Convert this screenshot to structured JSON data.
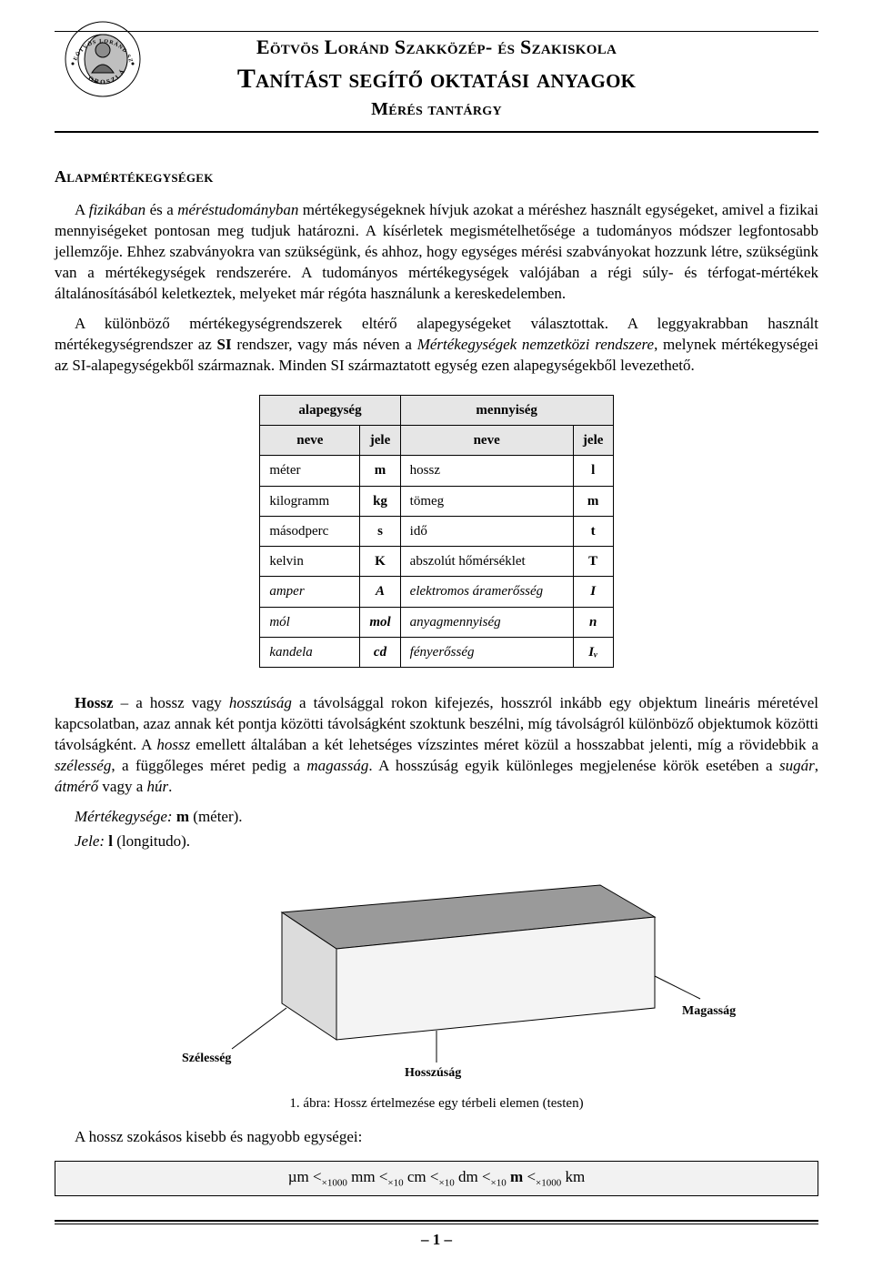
{
  "header": {
    "line1": "Eötvös Loránd Szakközép- és Szakiskola",
    "line2": "Tanítást segítő oktatási anyagok",
    "line3": "Mérés tantárgy"
  },
  "logo": {
    "text_top": "SZAKKÖZÉP",
    "text_side": "ÉS SZAKISKOLA",
    "text_left": "EÖTVÖS LORÁND",
    "text_bottom": "OROSZLÁNY",
    "stroke": "#000000",
    "fill": "#cfcfcf"
  },
  "section_title": "Alapmértékegységek",
  "para1_parts": {
    "a": "A ",
    "b": "fizikában",
    "c": " és a ",
    "d": "méréstudományban",
    "e": " mértékegységeknek hívjuk azokat a méréshez használt egységeket, amivel a fizikai mennyiségeket pontosan meg tudjuk határozni. A kísérletek megismételhetősége a tudományos módszer legfontosabb jellemzője. Ehhez szabványokra van szükségünk, és ahhoz, hogy egységes mérési szabványokat hozzunk létre, szükségünk van a mértékegységek rendszerére. A tudományos mértékegységek valójában a régi súly- és térfogat-mértékek általánosításából keletkeztek, melyeket már régóta használunk a kereskedelemben."
  },
  "para2_parts": {
    "a": "A különböző mértékegységrendszerek eltérő alapegységeket választottak. A leggyakrabban használt mértékegységrendszer az ",
    "b": "SI",
    "c": " rendszer, vagy más néven a ",
    "d": "Mértékegységek nemzetközi rendszere",
    "e": ", melynek mértékegységei az SI-alapegységekből származnak. Minden SI származtatott egység ezen alapegységekből levezethető."
  },
  "table": {
    "group1": "alapegység",
    "group2": "mennyiség",
    "col_neve": "neve",
    "col_jele": "jele",
    "rows": [
      {
        "name": "méter",
        "sym": "m",
        "qty": "hossz",
        "qsym": "l",
        "italic": false,
        "symItalic": false
      },
      {
        "name": "kilogramm",
        "sym": "kg",
        "qty": "tömeg",
        "qsym": "m",
        "italic": false,
        "symItalic": false
      },
      {
        "name": "másodperc",
        "sym": "s",
        "qty": "idő",
        "qsym": "t",
        "italic": false,
        "symItalic": false
      },
      {
        "name": "kelvin",
        "sym": "K",
        "qty": "abszolút hőmérséklet",
        "qsym": "T",
        "italic": false,
        "symItalic": false
      },
      {
        "name": "amper",
        "sym": "A",
        "qty": "elektromos áramerősség",
        "qsym": "I",
        "italic": true,
        "symItalic": true
      },
      {
        "name": "mól",
        "sym": "mol",
        "qty": "anyagmennyiség",
        "qsym": "n",
        "italic": true,
        "symItalic": true
      },
      {
        "name": "kandela",
        "sym": "cd",
        "qty": "fényerősség",
        "qsym": "Iᵥ",
        "italic": true,
        "symItalic": true
      }
    ]
  },
  "hossz_para_parts": {
    "a": "Hossz",
    "b": " – a hossz vagy ",
    "c": "hosszúság",
    "d": " a távolsággal rokon kifejezés, hosszról inkább egy objektum lineáris méretével kapcsolatban, azaz annak két pontja közötti távolságként szoktunk beszélni, míg távolságról különböző objektumok közötti távolságként. A ",
    "e": "hossz",
    "f": " emellett általában a két lehetséges vízszintes méret közül a hosszabbat jelenti, míg a rövidebbik a ",
    "g": "szélesség",
    "h": ", a függőleges méret pedig a ",
    "i": "magasság",
    "j": ". A hosszúság egyik különleges megjelenése körök esetében a ",
    "k": "sugár",
    "l": ", ",
    "m": "átmérő",
    "n": " vagy a ",
    "o": "húr",
    "p": "."
  },
  "meta": {
    "unit_label": "Mértékegysége:",
    "unit_value": "m",
    "unit_explain": " (méter).",
    "sign_label": "Jele:",
    "sign_value": "l",
    "sign_explain": " (longitudo)."
  },
  "figure": {
    "label_szelesseg": "Szélesség",
    "label_hosszusag": "Hosszúság",
    "label_magassag": "Magasság",
    "caption": "1. ábra: Hossz értelmezése egy térbeli elemen (testen)",
    "top_fill": "#9a9a9a",
    "front_fill": "#f4f4f4",
    "side_fill": "#dcdcdc",
    "stroke": "#000000"
  },
  "units_line": {
    "prefix": "A hossz szokásos kisebb és nagyobb egységei:",
    "u1": "µm",
    "s1": "×1000",
    "u2": "mm",
    "s2": "×10",
    "u3": "cm",
    "s3": "×10",
    "u4": "dm",
    "s4": "×10",
    "u5": "m",
    "s5": "×1000",
    "u6": "km",
    "lt": "<"
  },
  "footer": {
    "page": "– 1 –"
  }
}
